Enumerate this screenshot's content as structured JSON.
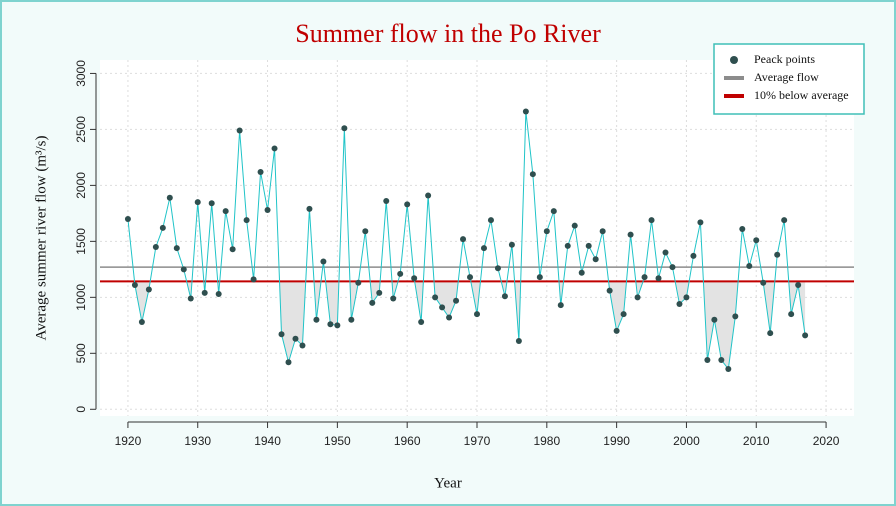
{
  "chart_data": {
    "type": "line",
    "title": "Summer flow in the Po River",
    "x_label": "Year",
    "y_label": "Average summer river flow (m³/s)",
    "x": [
      1920,
      1921,
      1922,
      1923,
      1924,
      1925,
      1926,
      1927,
      1928,
      1929,
      1930,
      1931,
      1932,
      1933,
      1934,
      1935,
      1936,
      1937,
      1938,
      1939,
      1940,
      1941,
      1942,
      1943,
      1944,
      1945,
      1946,
      1947,
      1948,
      1949,
      1950,
      1951,
      1952,
      1953,
      1954,
      1955,
      1956,
      1957,
      1958,
      1959,
      1960,
      1961,
      1962,
      1963,
      1964,
      1965,
      1966,
      1967,
      1968,
      1969,
      1970,
      1971,
      1972,
      1973,
      1974,
      1975,
      1976,
      1977,
      1978,
      1979,
      1980,
      1981,
      1982,
      1983,
      1984,
      1985,
      1986,
      1987,
      1988,
      1989,
      1990,
      1991,
      1992,
      1993,
      1994,
      1995,
      1996,
      1997,
      1998,
      1999,
      2000,
      2001,
      2002,
      2003,
      2004,
      2005,
      2006,
      2007,
      2008,
      2009,
      2010,
      2011,
      2012,
      2013,
      2014,
      2015,
      2016,
      2017
    ],
    "series": [
      {
        "name": "Peack points",
        "color": "#2f4f4f",
        "line_color": "#20c4c8",
        "values": [
          1700,
          1110,
          780,
          1070,
          1450,
          1620,
          1890,
          1440,
          1250,
          990,
          1850,
          1040,
          1840,
          1030,
          1770,
          1430,
          2490,
          1690,
          1160,
          2120,
          1780,
          2330,
          670,
          420,
          630,
          570,
          1790,
          800,
          1320,
          760,
          750,
          2510,
          800,
          1130,
          1590,
          950,
          1040,
          1860,
          990,
          1210,
          1830,
          1170,
          780,
          1910,
          1000,
          910,
          820,
          970,
          1520,
          1180,
          850,
          1440,
          1690,
          1260,
          1010,
          1470,
          610,
          2660,
          2100,
          1180,
          1590,
          1770,
          930,
          1460,
          1640,
          1220,
          1460,
          1340,
          1590,
          1060,
          700,
          850,
          1560,
          1000,
          1180,
          1690,
          1170,
          1400,
          1270,
          940,
          1000,
          1370,
          1670,
          440,
          800,
          440,
          360,
          830,
          1610,
          1280,
          1510,
          1130,
          680,
          1380,
          1690,
          850,
          1110,
          660
        ]
      }
    ],
    "hlines": [
      {
        "name": "Average flow",
        "value": 1270,
        "color": "#8c8c8c"
      },
      {
        "name": "10% below average",
        "value": 1143,
        "color": "#c00000"
      }
    ],
    "shade_below": 1,
    "shade_color": "#e3e3e3",
    "xlim": [
      1916,
      2024
    ],
    "xticks": [
      1920,
      1930,
      1940,
      1950,
      1960,
      1970,
      1980,
      1990,
      2000,
      2010,
      2020
    ],
    "ylim": [
      -60,
      3120
    ],
    "yticks": [
      0,
      500,
      1000,
      1500,
      2000,
      2500,
      3000
    ],
    "grid": true,
    "legend": "top-right",
    "title_color": "#c00000"
  }
}
